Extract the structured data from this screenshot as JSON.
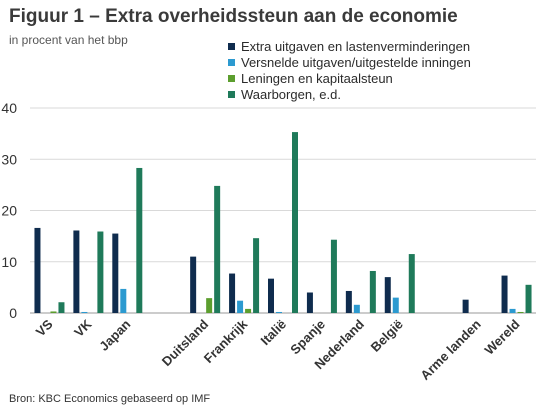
{
  "title": "Figuur 1 – Extra overheidssteun aan de economie",
  "subtitle": "in procent van het bbp",
  "source": "Bron: KBC Economics gebaseerd op IMF",
  "chart_data": {
    "type": "bar",
    "title": "Figuur 1 – Extra overheidssteun aan de economie",
    "subtitle": "in procent van het bbp",
    "xlabel": "",
    "ylabel": "",
    "ylim": [
      0,
      40
    ],
    "yticks": [
      "0",
      "10",
      "20",
      "30",
      "40"
    ],
    "grid": true,
    "legend_position": "top-right",
    "categories": [
      "VS",
      "VK",
      "Japan",
      "",
      "Duitsland",
      "Frankrijk",
      "Italië",
      "Spanje",
      "Nederland",
      "België",
      "",
      "Arme landen",
      "Wereld"
    ],
    "series": [
      {
        "name": "Extra uitgaven en lastenverminderingen",
        "color": "#0f2c4e",
        "values": [
          16.6,
          16.1,
          15.5,
          null,
          11.0,
          7.7,
          6.7,
          4.0,
          4.3,
          7.0,
          null,
          2.6,
          7.3
        ]
      },
      {
        "name": "Versnelde uitgaven/uitgestelde inningen",
        "color": "#2c9ad0",
        "values": [
          0.0,
          0.2,
          4.7,
          null,
          0.0,
          2.4,
          0.2,
          0.0,
          1.6,
          3.0,
          null,
          0.0,
          0.8
        ]
      },
      {
        "name": "Leningen en kapitaalsteun",
        "color": "#5c9e2e",
        "values": [
          0.3,
          0.0,
          0.0,
          null,
          2.9,
          0.8,
          0.0,
          0.0,
          0.0,
          0.0,
          null,
          0.0,
          0.2
        ]
      },
      {
        "name": "Waarborgen, e.d.",
        "color": "#1f7a5a",
        "values": [
          2.1,
          15.9,
          28.3,
          null,
          24.8,
          14.6,
          35.3,
          14.3,
          8.2,
          11.5,
          null,
          0.0,
          5.5
        ]
      }
    ]
  }
}
